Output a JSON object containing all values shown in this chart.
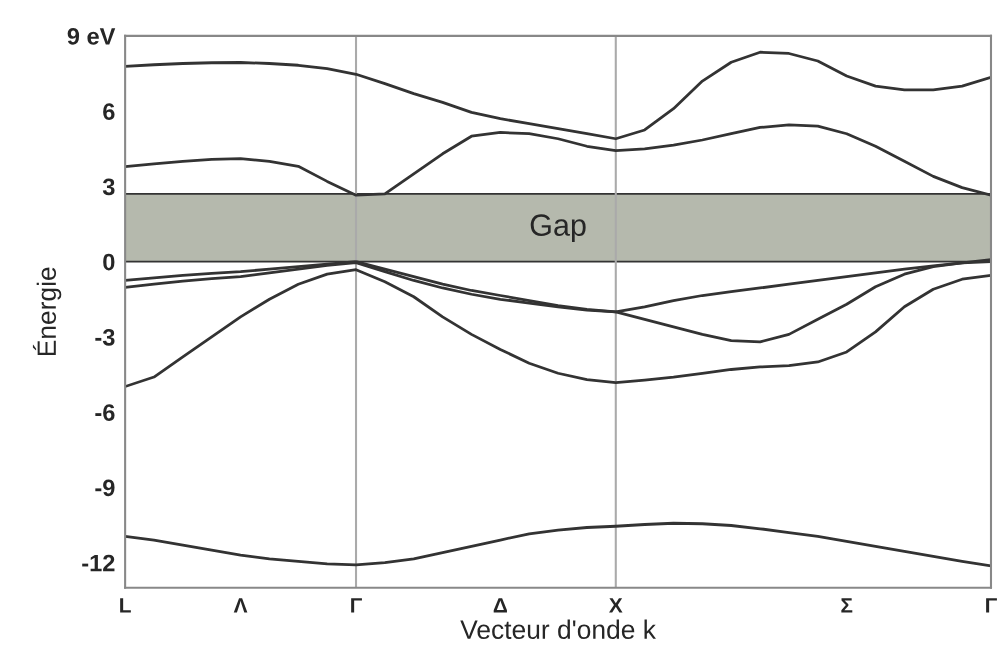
{
  "chart_data": {
    "type": "line",
    "xlabel": "Vecteur d'onde k",
    "ylabel": "Énergie",
    "categories": [
      "L",
      null,
      null,
      null,
      "Λ",
      null,
      null,
      null,
      "Γ",
      null,
      null,
      null,
      null,
      "Δ",
      null,
      null,
      null,
      "X",
      null,
      null,
      null,
      null,
      null,
      null,
      null,
      "Σ",
      null,
      null,
      null,
      null,
      "Γ"
    ],
    "ylim": [
      -13,
      9
    ],
    "yticks": [
      {
        "value": 9,
        "label": "9 eV"
      },
      6,
      3,
      0,
      -3,
      -6,
      -9,
      -12
    ],
    "grid": false,
    "legend": false,
    "line_style": "solid",
    "marker": "none",
    "ref_lines": [
      {
        "axis": "x",
        "value": "Γ",
        "color": "#aaaaaa"
      },
      {
        "axis": "x",
        "value": "X",
        "color": "#aaaaaa"
      }
    ],
    "bands": [
      {
        "axis": "y",
        "from": 0,
        "to": 2.7,
        "label": "Gap",
        "color": "#b5b9ad"
      }
    ],
    "series": [
      {
        "color": "#333333",
        "values": [
          7.79,
          7.85,
          7.9,
          7.93,
          7.94,
          7.9,
          7.83,
          7.7,
          7.47,
          7.1,
          6.7,
          6.35,
          5.95,
          5.7,
          5.5,
          5.3,
          5.1,
          4.9,
          5.25,
          6.1,
          7.2,
          7.95,
          8.35,
          8.3,
          8.0,
          7.4,
          7.0,
          6.85,
          6.85,
          7.0,
          7.35
        ]
      },
      {
        "color": "#333333",
        "values": [
          3.79,
          3.9,
          4.0,
          4.08,
          4.11,
          4.0,
          3.8,
          3.2,
          2.65,
          2.7,
          3.5,
          4.3,
          5.0,
          5.15,
          5.1,
          4.9,
          4.6,
          4.43,
          4.5,
          4.65,
          4.85,
          5.1,
          5.35,
          5.45,
          5.4,
          5.1,
          4.6,
          4.0,
          3.4,
          2.95,
          2.65
        ]
      },
      {
        "color": "#333333",
        "values": [
          -0.75,
          -0.65,
          -0.55,
          -0.47,
          -0.4,
          -0.3,
          -0.2,
          -0.1,
          0,
          -0.3,
          -0.6,
          -0.9,
          -1.15,
          -1.35,
          -1.55,
          -1.75,
          -1.9,
          -2.0,
          -1.8,
          -1.55,
          -1.35,
          -1.2,
          -1.05,
          -0.9,
          -0.75,
          -0.6,
          -0.45,
          -0.3,
          -0.17,
          -0.05,
          0.08
        ]
      },
      {
        "color": "#333333",
        "values": [
          -1.03,
          -0.9,
          -0.78,
          -0.68,
          -0.6,
          -0.45,
          -0.3,
          -0.15,
          -0.04,
          -0.4,
          -0.75,
          -1.05,
          -1.3,
          -1.5,
          -1.65,
          -1.8,
          -1.93,
          -2.0,
          -2.3,
          -2.6,
          -2.9,
          -3.15,
          -3.2,
          -2.9,
          -2.3,
          -1.7,
          -1.0,
          -0.5,
          -0.2,
          -0.05,
          0
        ]
      },
      {
        "color": "#333333",
        "values": [
          -4.98,
          -4.6,
          -3.8,
          -3.0,
          -2.2,
          -1.5,
          -0.9,
          -0.5,
          -0.32,
          -0.8,
          -1.4,
          -2.2,
          -2.9,
          -3.5,
          -4.05,
          -4.45,
          -4.7,
          -4.82,
          -4.72,
          -4.6,
          -4.45,
          -4.3,
          -4.2,
          -4.15,
          -4.0,
          -3.6,
          -2.8,
          -1.8,
          -1.1,
          -0.7,
          -0.55
        ]
      },
      {
        "color": "#333333",
        "values": [
          -10.95,
          -11.1,
          -11.3,
          -11.5,
          -11.7,
          -11.85,
          -11.95,
          -12.05,
          -12.09,
          -12.0,
          -11.85,
          -11.6,
          -11.35,
          -11.1,
          -10.85,
          -10.7,
          -10.6,
          -10.55,
          -10.48,
          -10.43,
          -10.45,
          -10.52,
          -10.65,
          -10.8,
          -10.95,
          -11.15,
          -11.35,
          -11.55,
          -11.75,
          -11.95,
          -12.13
        ]
      }
    ]
  }
}
